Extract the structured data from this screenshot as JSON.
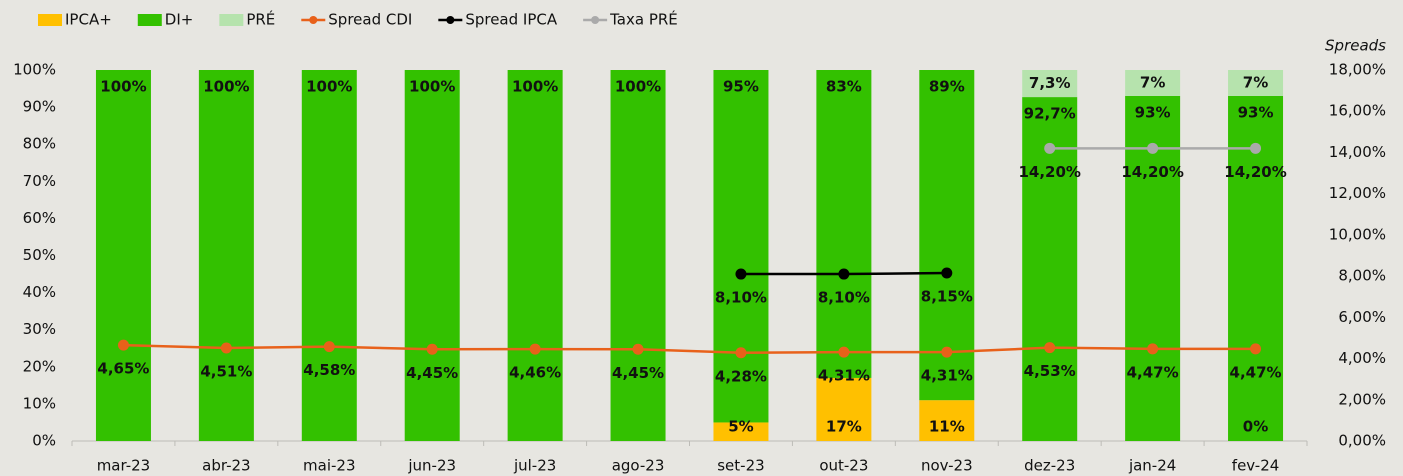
{
  "chart_data": {
    "type": "bar",
    "stacked": true,
    "categories": [
      "mar-23",
      "abr-23",
      "mai-23",
      "jun-23",
      "jul-23",
      "ago-23",
      "set-23",
      "out-23",
      "nov-23",
      "dez-23",
      "jan-24",
      "fev-24"
    ],
    "ylim": [
      0,
      100
    ],
    "yticks": [
      {
        "value": 0,
        "label": "0%"
      },
      {
        "value": 10,
        "label": "10%"
      },
      {
        "value": 20,
        "label": "20%"
      },
      {
        "value": 30,
        "label": "30%"
      },
      {
        "value": 40,
        "label": "40%"
      },
      {
        "value": 50,
        "label": "50%"
      },
      {
        "value": 60,
        "label": "60%"
      },
      {
        "value": 70,
        "label": "70%"
      },
      {
        "value": 80,
        "label": "80%"
      },
      {
        "value": 90,
        "label": "90%"
      },
      {
        "value": 100,
        "label": "100%"
      }
    ],
    "y2label": "Spreads",
    "y2lim": [
      0,
      18
    ],
    "y2ticks": [
      {
        "value": 0,
        "label": "0,00%"
      },
      {
        "value": 2,
        "label": "2,00%"
      },
      {
        "value": 4,
        "label": "4,00%"
      },
      {
        "value": 6,
        "label": "6,00%"
      },
      {
        "value": 8,
        "label": "8,00%"
      },
      {
        "value": 10,
        "label": "10,00%"
      },
      {
        "value": 12,
        "label": "12,00%"
      },
      {
        "value": 14,
        "label": "14,00%"
      },
      {
        "value": 16,
        "label": "16,00%"
      },
      {
        "value": 18,
        "label": "18,00%"
      }
    ],
    "series": [
      {
        "name": "IPCA+",
        "type": "bar",
        "color": "#ffc000",
        "values": [
          0,
          0,
          0,
          0,
          0,
          0,
          5,
          17,
          11,
          0,
          0,
          0
        ],
        "value_labels": [
          null,
          null,
          null,
          null,
          null,
          null,
          "5%",
          "17%",
          "11%",
          null,
          null,
          "0%"
        ]
      },
      {
        "name": "DI+",
        "type": "bar",
        "color": "#33c100",
        "values": [
          100,
          100,
          100,
          100,
          100,
          100,
          95,
          83,
          89,
          92.7,
          93,
          93
        ],
        "value_labels": [
          "100%",
          "100%",
          "100%",
          "100%",
          "100%",
          "100%",
          "95%",
          "83%",
          "89%",
          "92,7%",
          "93%",
          "93%"
        ]
      },
      {
        "name": "PRÉ",
        "type": "bar",
        "color": "#b6e3ad",
        "values": [
          0,
          0,
          0,
          0,
          0,
          0,
          0,
          0,
          0,
          7.3,
          7,
          7
        ],
        "value_labels": [
          null,
          null,
          null,
          null,
          null,
          null,
          null,
          null,
          null,
          "7,3%",
          "7%",
          "7%"
        ]
      },
      {
        "name": "Spread CDI",
        "type": "line",
        "axis": "y2",
        "color": "#e8611a",
        "values": [
          4.65,
          4.51,
          4.58,
          4.45,
          4.46,
          4.45,
          4.28,
          4.31,
          4.31,
          4.53,
          4.47,
          4.47
        ],
        "value_labels": [
          "4,65%",
          "4,51%",
          "4,58%",
          "4,45%",
          "4,46%",
          "4,45%",
          "4,28%",
          "4,31%",
          "4,31%",
          "4,53%",
          "4,47%",
          "4,47%"
        ]
      },
      {
        "name": "Spread IPCA",
        "type": "line",
        "axis": "y2",
        "color": "#000000",
        "values": [
          null,
          null,
          null,
          null,
          null,
          null,
          8.1,
          8.1,
          8.15,
          null,
          null,
          null
        ],
        "value_labels": [
          null,
          null,
          null,
          null,
          null,
          null,
          "8,10%",
          "8,10%",
          "8,15%",
          null,
          null,
          null
        ]
      },
      {
        "name": "Taxa PRÉ",
        "type": "line",
        "axis": "y2",
        "color": "#aaaaaa",
        "values": [
          null,
          null,
          null,
          null,
          null,
          null,
          null,
          null,
          null,
          14.2,
          14.2,
          14.2
        ],
        "value_labels": [
          null,
          null,
          null,
          null,
          null,
          null,
          null,
          null,
          null,
          "14,20%",
          "14,20%",
          "14,20%"
        ]
      }
    ]
  }
}
